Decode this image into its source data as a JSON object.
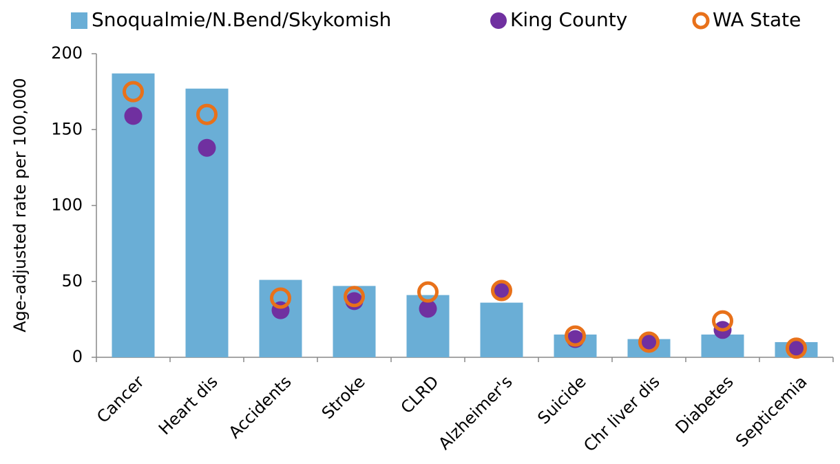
{
  "chart_data": {
    "type": "bar",
    "categories": [
      "Cancer",
      "Heart dis",
      "Accidents",
      "Stroke",
      "CLRD",
      "Alzheimer's",
      "Suicide",
      "Chr liver dis",
      "Diabetes",
      "Septicemia"
    ],
    "series": [
      {
        "name": "Snoqualmie/N.Bend/Skykomish",
        "type": "bar",
        "color": "#6aaed6",
        "values": [
          187,
          177,
          51,
          47,
          41,
          36,
          15,
          12,
          15,
          10
        ]
      },
      {
        "name": "King County",
        "type": "scatter",
        "marker": "filled",
        "color": "#7030a0",
        "values": [
          159,
          138,
          31,
          37,
          32,
          43,
          12,
          10,
          18,
          6
        ]
      },
      {
        "name": "WA State",
        "type": "scatter",
        "marker": "hollow",
        "color": "#e8711a",
        "values": [
          175,
          160,
          39,
          40,
          43,
          44,
          14,
          10,
          24,
          6
        ]
      }
    ],
    "ylabel": "Age-adjusted rate per 100,000",
    "ylim": [
      0,
      200
    ],
    "yticks": [
      0,
      50,
      100,
      150,
      200
    ]
  }
}
